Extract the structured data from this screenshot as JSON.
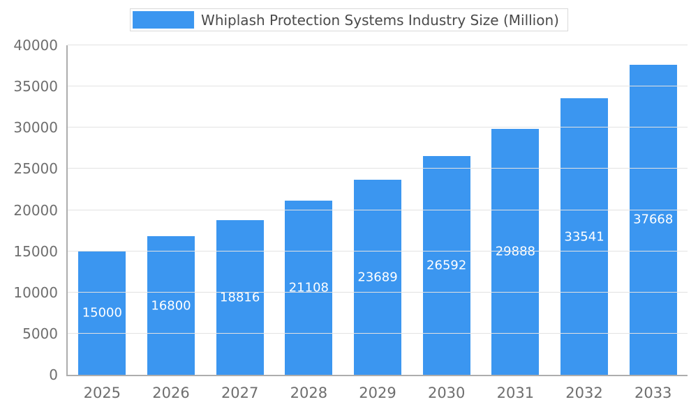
{
  "chart_data": {
    "type": "bar",
    "title": "Whiplash Protection Systems Industry Size (Million)",
    "categories": [
      "2025",
      "2026",
      "2027",
      "2028",
      "2029",
      "2030",
      "2031",
      "2032",
      "2033"
    ],
    "values": [
      15000,
      16800,
      18816,
      21108,
      23689,
      26592,
      29888,
      33541,
      37668
    ],
    "xlabel": "",
    "ylabel": "",
    "ylim": [
      0,
      40000
    ],
    "ytick_step": 5000,
    "grid": true,
    "legend_position": "top-center",
    "colors": {
      "bar": "#3B96F0",
      "bar_label_text": "#FFFFFF",
      "grid_line": "#E2E2E2",
      "axis_line": "#ADADAD",
      "tick_text": "#6E6E6E",
      "title_text": "#4A4A4A"
    }
  }
}
